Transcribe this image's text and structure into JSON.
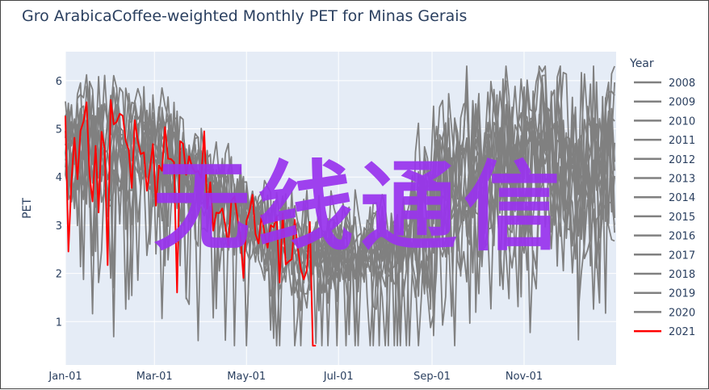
{
  "chart_data": {
    "type": "line",
    "title": "Gro ArabicaCoffee-weighted Monthly PET for Minas Gerais",
    "xlabel": "",
    "ylabel": "PET",
    "x_ticks": [
      "Jan-01",
      "Mar-01",
      "May-01",
      "Jul-01",
      "Sep-01",
      "Nov-01"
    ],
    "y_ticks": [
      1,
      2,
      3,
      4,
      5,
      6
    ],
    "ylim": [
      0.1,
      6.6
    ],
    "xlim_days": [
      1,
      366
    ],
    "grid": true,
    "legend": {
      "title": "Year",
      "placement": "right"
    },
    "background_color": "#e5ecf6",
    "series_colors": {
      "default": "#808080",
      "highlight": "#ff0000"
    },
    "series": [
      {
        "name": "2008",
        "color": "#808080",
        "seed": 11
      },
      {
        "name": "2009",
        "color": "#808080",
        "seed": 23
      },
      {
        "name": "2010",
        "color": "#808080",
        "seed": 37
      },
      {
        "name": "2011",
        "color": "#808080",
        "seed": 41
      },
      {
        "name": "2012",
        "color": "#808080",
        "seed": 53
      },
      {
        "name": "2013",
        "color": "#808080",
        "seed": 67
      },
      {
        "name": "2014",
        "color": "#808080",
        "seed": 71
      },
      {
        "name": "2015",
        "color": "#808080",
        "seed": 83
      },
      {
        "name": "2016",
        "color": "#808080",
        "seed": 97
      },
      {
        "name": "2017",
        "color": "#808080",
        "seed": 101
      },
      {
        "name": "2018",
        "color": "#808080",
        "seed": 113
      },
      {
        "name": "2019",
        "color": "#808080",
        "seed": 127
      },
      {
        "name": "2020",
        "color": "#808080",
        "seed": 131
      },
      {
        "name": "2021",
        "color": "#ff0000",
        "seed": 149,
        "last_day": 168
      }
    ]
  },
  "watermark": "无线通信"
}
